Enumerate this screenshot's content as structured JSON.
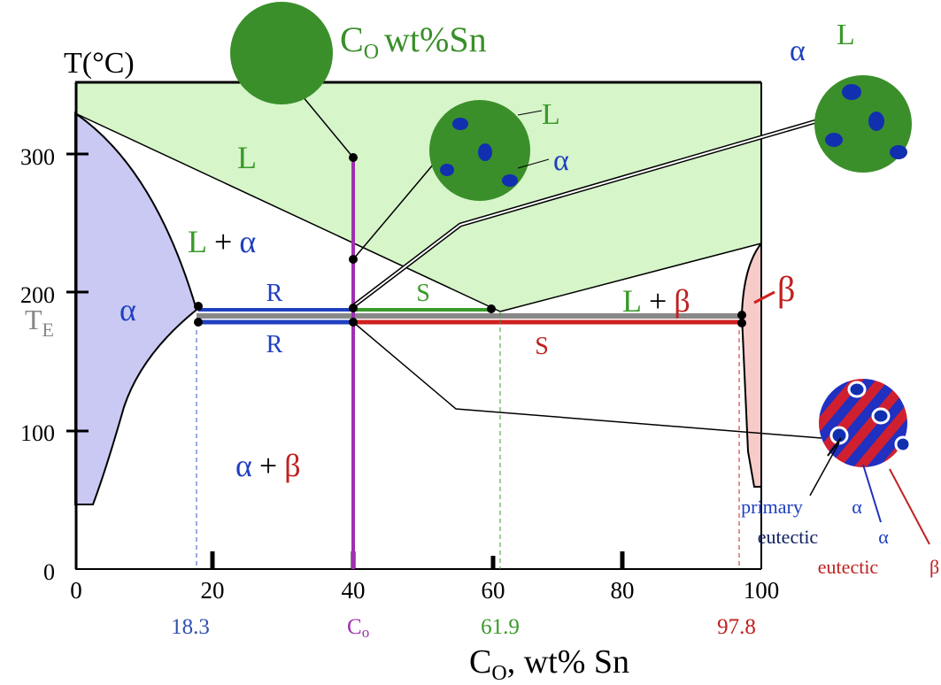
{
  "axes": {
    "y_title": "T(°C)",
    "y_ticks": [
      "300",
      "200",
      "100",
      "0"
    ],
    "x_ticks": [
      "0",
      "20",
      "40",
      "60",
      "80",
      "100"
    ],
    "marked": [
      "18.3",
      "61.9",
      "97.8"
    ],
    "marked_c": {
      "main": "C",
      "sub": "o"
    },
    "x_title": {
      "main": "C",
      "sub": "O",
      "rest": ", wt% Sn"
    },
    "t_e": {
      "main": "T",
      "sub": "E"
    }
  },
  "composition": {
    "main": "C",
    "sub": "O",
    "rest": "wt%Sn"
  },
  "regions": {
    "liquid": "L",
    "l_alpha": {
      "l": "L",
      "plus": "+",
      "phase": "α"
    },
    "alpha": "α",
    "l_beta": {
      "l": "L",
      "plus": "+",
      "phase": "β"
    },
    "beta": "β",
    "alpha_beta": {
      "a": "α",
      "plus": "+",
      "b": "β"
    }
  },
  "lever": {
    "r_upper": "R",
    "s_upper": "S",
    "r_lower": "R",
    "s_lower": "S"
  },
  "micro_mid": {
    "liquid": "L",
    "alpha": "α"
  },
  "micro_right": {
    "alpha": "α",
    "liquid": "L"
  },
  "micro_bottom": {
    "primary": "primary",
    "eutectic": "eutectic",
    "alpha_primary": "α",
    "alpha_eutectic": "α",
    "eutectic2": "eutectic",
    "beta": "β"
  }
}
